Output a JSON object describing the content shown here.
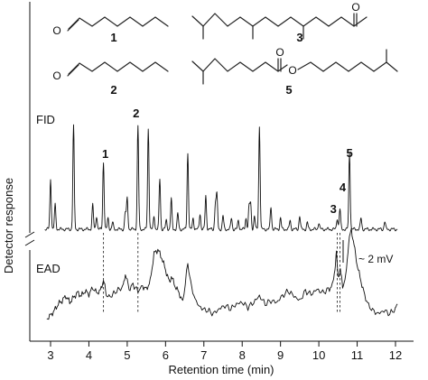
{
  "chart_data": {
    "type": "line",
    "xlabel": "Retention time (min)",
    "ylabel": "Detector  response",
    "xlim": [
      2.7,
      12.3
    ],
    "xticks": [
      "3",
      "4",
      "5",
      "6",
      "7",
      "8",
      "9",
      "10",
      "11",
      "12"
    ],
    "grid": false,
    "series": [
      {
        "name": "FID",
        "peaks": [
          {
            "t": 3.0,
            "h": 0.45
          },
          {
            "t": 3.12,
            "h": 0.22
          },
          {
            "t": 3.6,
            "h": 0.92
          },
          {
            "t": 4.1,
            "h": 0.22
          },
          {
            "t": 4.2,
            "h": 0.12
          },
          {
            "t": 4.38,
            "h": 0.6
          },
          {
            "t": 4.5,
            "h": 0.1
          },
          {
            "t": 4.62,
            "h": 0.06
          },
          {
            "t": 4.95,
            "h": 0.15
          },
          {
            "t": 5.0,
            "h": 0.28
          },
          {
            "t": 5.28,
            "h": 0.92
          },
          {
            "t": 5.55,
            "h": 0.9
          },
          {
            "t": 5.7,
            "h": 0.12
          },
          {
            "t": 5.85,
            "h": 0.45
          },
          {
            "t": 6.02,
            "h": 0.08
          },
          {
            "t": 6.15,
            "h": 0.27
          },
          {
            "t": 6.32,
            "h": 0.14
          },
          {
            "t": 6.58,
            "h": 0.68
          },
          {
            "t": 6.72,
            "h": 0.1
          },
          {
            "t": 6.9,
            "h": 0.14
          },
          {
            "t": 7.05,
            "h": 0.3
          },
          {
            "t": 7.3,
            "h": 0.22
          },
          {
            "t": 7.34,
            "h": 0.3
          },
          {
            "t": 7.5,
            "h": 0.12
          },
          {
            "t": 7.72,
            "h": 0.1
          },
          {
            "t": 7.9,
            "h": 0.08
          },
          {
            "t": 8.1,
            "h": 0.1
          },
          {
            "t": 8.18,
            "h": 0.2
          },
          {
            "t": 8.22,
            "h": 0.22
          },
          {
            "t": 8.32,
            "h": 0.12
          },
          {
            "t": 8.45,
            "h": 0.92
          },
          {
            "t": 8.75,
            "h": 0.2
          },
          {
            "t": 9.0,
            "h": 0.1
          },
          {
            "t": 9.25,
            "h": 0.08
          },
          {
            "t": 9.5,
            "h": 0.12
          },
          {
            "t": 9.7,
            "h": 0.06
          },
          {
            "t": 10.0,
            "h": 0.06
          },
          {
            "t": 10.48,
            "h": 0.1
          },
          {
            "t": 10.55,
            "h": 0.18
          },
          {
            "t": 10.8,
            "h": 0.68
          },
          {
            "t": 11.1,
            "h": 0.1
          },
          {
            "t": 11.72,
            "h": 0.07
          }
        ]
      },
      {
        "name": "EAD",
        "points": [
          [
            2.9,
            0.1
          ],
          [
            3.0,
            0.14
          ],
          [
            3.1,
            0.2
          ],
          [
            3.2,
            0.28
          ],
          [
            3.3,
            0.32
          ],
          [
            3.4,
            0.38
          ],
          [
            3.5,
            0.3
          ],
          [
            3.6,
            0.36
          ],
          [
            3.7,
            0.42
          ],
          [
            3.8,
            0.38
          ],
          [
            3.9,
            0.44
          ],
          [
            4.0,
            0.4
          ],
          [
            4.1,
            0.48
          ],
          [
            4.2,
            0.42
          ],
          [
            4.3,
            0.44
          ],
          [
            4.38,
            0.58
          ],
          [
            4.45,
            0.4
          ],
          [
            4.55,
            0.36
          ],
          [
            4.65,
            0.42
          ],
          [
            4.8,
            0.46
          ],
          [
            4.9,
            0.5
          ],
          [
            4.95,
            0.66
          ],
          [
            5.05,
            0.46
          ],
          [
            5.15,
            0.52
          ],
          [
            5.28,
            0.44
          ],
          [
            5.4,
            0.5
          ],
          [
            5.5,
            0.46
          ],
          [
            5.6,
            0.56
          ],
          [
            5.7,
            0.9
          ],
          [
            5.8,
            0.95
          ],
          [
            5.9,
            0.85
          ],
          [
            6.0,
            0.7
          ],
          [
            6.1,
            0.55
          ],
          [
            6.15,
            0.62
          ],
          [
            6.25,
            0.5
          ],
          [
            6.35,
            0.42
          ],
          [
            6.45,
            0.3
          ],
          [
            6.58,
            0.78
          ],
          [
            6.68,
            0.48
          ],
          [
            6.8,
            0.3
          ],
          [
            6.95,
            0.22
          ],
          [
            7.1,
            0.2
          ],
          [
            7.25,
            0.16
          ],
          [
            7.4,
            0.22
          ],
          [
            7.55,
            0.26
          ],
          [
            7.7,
            0.22
          ],
          [
            7.85,
            0.28
          ],
          [
            8.0,
            0.3
          ],
          [
            8.15,
            0.24
          ],
          [
            8.3,
            0.3
          ],
          [
            8.45,
            0.38
          ],
          [
            8.6,
            0.28
          ],
          [
            8.75,
            0.32
          ],
          [
            8.9,
            0.3
          ],
          [
            9.05,
            0.38
          ],
          [
            9.2,
            0.44
          ],
          [
            9.35,
            0.38
          ],
          [
            9.5,
            0.32
          ],
          [
            9.65,
            0.44
          ],
          [
            9.8,
            0.4
          ],
          [
            9.95,
            0.46
          ],
          [
            10.1,
            0.42
          ],
          [
            10.25,
            0.46
          ],
          [
            10.35,
            0.5
          ],
          [
            10.42,
            0.72
          ],
          [
            10.46,
            0.9
          ],
          [
            10.5,
            0.62
          ],
          [
            10.56,
            0.7
          ],
          [
            10.62,
            0.5
          ],
          [
            10.7,
            0.6
          ],
          [
            10.78,
            1.05
          ],
          [
            10.85,
            1.2
          ],
          [
            10.92,
            1.0
          ],
          [
            11.0,
            0.76
          ],
          [
            11.1,
            0.56
          ],
          [
            11.2,
            0.38
          ],
          [
            11.3,
            0.26
          ],
          [
            11.4,
            0.2
          ],
          [
            11.55,
            0.16
          ],
          [
            11.7,
            0.2
          ],
          [
            11.85,
            0.16
          ],
          [
            12.0,
            0.22
          ],
          [
            12.05,
            0.28
          ]
        ]
      }
    ],
    "guides": [
      {
        "t": 4.38,
        "label": ""
      },
      {
        "t": 5.28,
        "label": ""
      },
      {
        "t": 10.48,
        "label": ""
      },
      {
        "t": 10.55,
        "label": ""
      }
    ],
    "peak_labels": [
      {
        "label": "1",
        "t": 4.38
      },
      {
        "label": "2",
        "t": 5.28
      },
      {
        "label": "3",
        "t": 10.45
      },
      {
        "label": "4",
        "t": 10.55
      },
      {
        "label": "5",
        "t": 10.8
      }
    ],
    "scale_annotation": "~ 2 mV"
  },
  "compounds": [
    {
      "id": "compound-1",
      "label": "1"
    },
    {
      "id": "compound-2",
      "label": "2"
    },
    {
      "id": "compound-3",
      "label": "3"
    },
    {
      "id": "compound-5",
      "label": "5"
    }
  ],
  "hetero_atom": "O"
}
